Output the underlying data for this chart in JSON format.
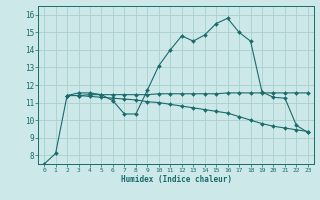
{
  "xlabel": "Humidex (Indice chaleur)",
  "bg_color": "#cce8e8",
  "grid_color": "#aacfcf",
  "line_color": "#1a6b6b",
  "xlim": [
    -0.5,
    23.5
  ],
  "ylim": [
    7.5,
    16.5
  ],
  "xticks": [
    0,
    1,
    2,
    3,
    4,
    5,
    6,
    7,
    8,
    9,
    10,
    11,
    12,
    13,
    14,
    15,
    16,
    17,
    18,
    19,
    20,
    21,
    22,
    23
  ],
  "yticks": [
    8,
    9,
    10,
    11,
    12,
    13,
    14,
    15,
    16
  ],
  "series1_x": [
    0,
    1,
    2,
    3,
    4,
    5,
    6,
    7,
    8,
    9,
    10,
    11,
    12,
    13,
    14,
    15,
    16,
    17,
    18,
    19,
    20,
    21,
    22,
    23
  ],
  "series1_y": [
    7.5,
    8.1,
    11.4,
    11.55,
    11.55,
    11.45,
    11.1,
    10.35,
    10.35,
    11.7,
    13.1,
    14.0,
    14.8,
    14.5,
    14.85,
    15.5,
    15.8,
    15.0,
    14.5,
    11.6,
    11.3,
    11.25,
    9.7,
    9.3
  ],
  "series2_x": [
    2,
    3,
    4,
    5,
    6,
    7,
    8,
    9,
    10,
    11,
    12,
    13,
    14,
    15,
    16,
    17,
    18,
    19,
    20,
    21,
    22,
    23
  ],
  "series2_y": [
    11.4,
    11.4,
    11.45,
    11.45,
    11.45,
    11.45,
    11.45,
    11.45,
    11.5,
    11.5,
    11.5,
    11.5,
    11.5,
    11.5,
    11.55,
    11.55,
    11.55,
    11.55,
    11.55,
    11.55,
    11.55,
    11.55
  ],
  "series3_x": [
    2,
    3,
    4,
    5,
    6,
    7,
    8,
    9,
    10,
    11,
    12,
    13,
    14,
    15,
    16,
    17,
    18,
    19,
    20,
    21,
    22,
    23
  ],
  "series3_y": [
    11.4,
    11.4,
    11.35,
    11.3,
    11.25,
    11.2,
    11.15,
    11.05,
    11.0,
    10.9,
    10.8,
    10.7,
    10.6,
    10.5,
    10.4,
    10.2,
    10.0,
    9.8,
    9.65,
    9.55,
    9.45,
    9.35
  ]
}
